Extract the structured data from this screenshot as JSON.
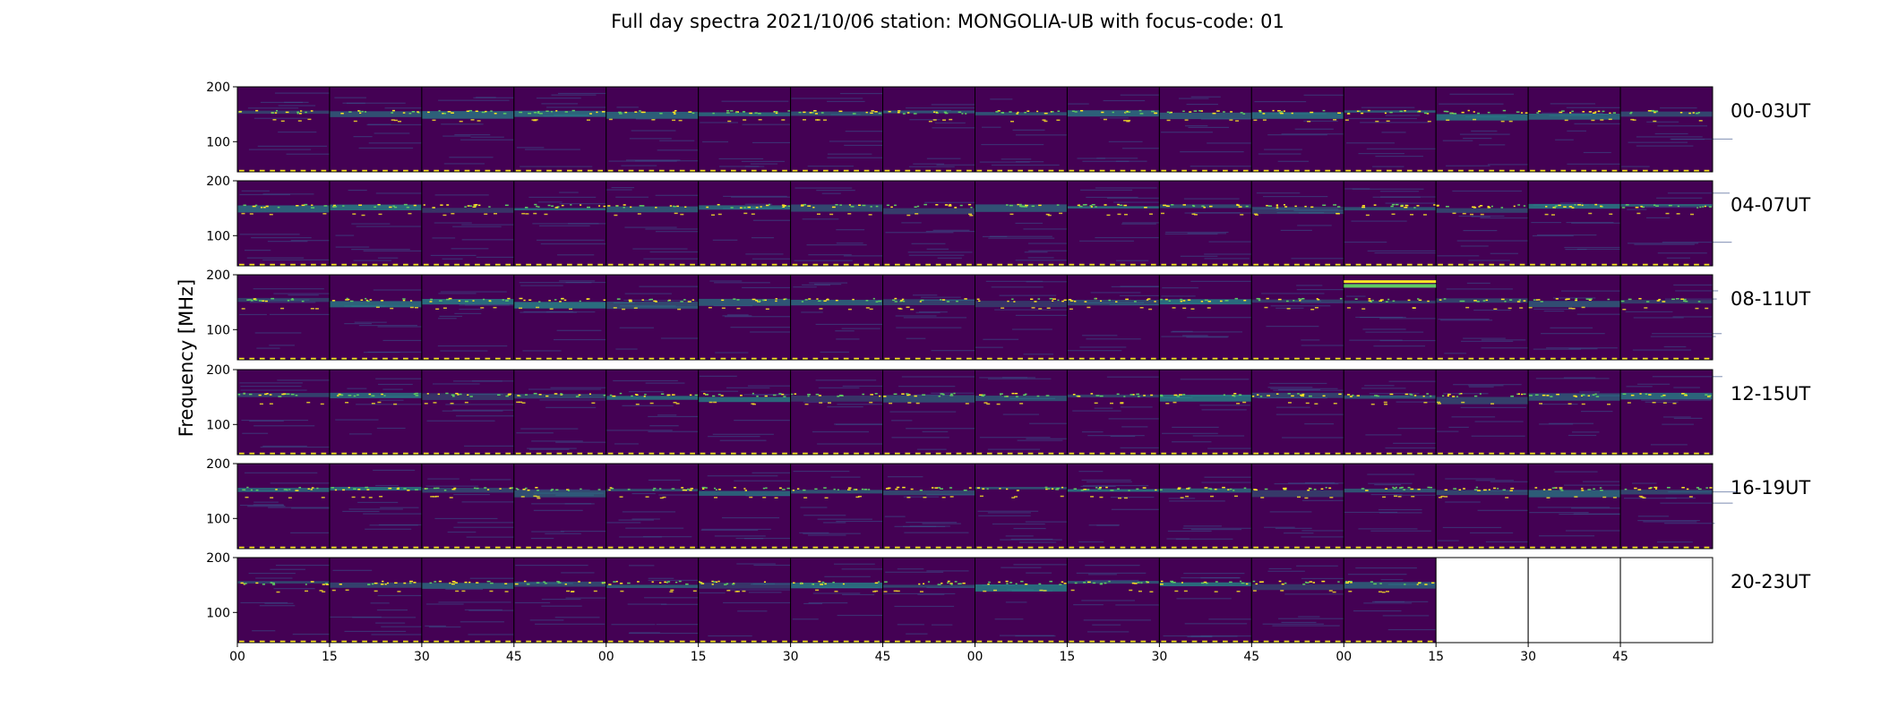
{
  "chart_data": {
    "type": "heatmap",
    "title": "Full day spectra 2021/10/06 station: MONGOLIA-UB with focus-code: 01",
    "ylabel": "Frequency [MHz]",
    "xlabel": "",
    "colormap": "viridis",
    "ylim": [
      45,
      200
    ],
    "y_ticks": [
      "200",
      "100"
    ],
    "x_ticks": [
      "00",
      "15",
      "30",
      "45",
      "00",
      "15",
      "30",
      "45",
      "00",
      "15",
      "30",
      "45",
      "00",
      "15",
      "30",
      "45"
    ],
    "panels_per_row": 16,
    "panel_minutes": 15,
    "rows": [
      {
        "label": "00-03UT",
        "filled_panels": 16
      },
      {
        "label": "04-07UT",
        "filled_panels": 16
      },
      {
        "label": "08-11UT",
        "filled_panels": 16
      },
      {
        "label": "12-15UT",
        "filled_panels": 16
      },
      {
        "label": "16-19UT",
        "filled_panels": 16
      },
      {
        "label": "20-23UT",
        "filled_panels": 13
      }
    ],
    "palette": {
      "background": "#440154",
      "low": "#3b528b",
      "mid": "#21918c",
      "high": "#5ec962",
      "peak": "#fde725"
    }
  }
}
